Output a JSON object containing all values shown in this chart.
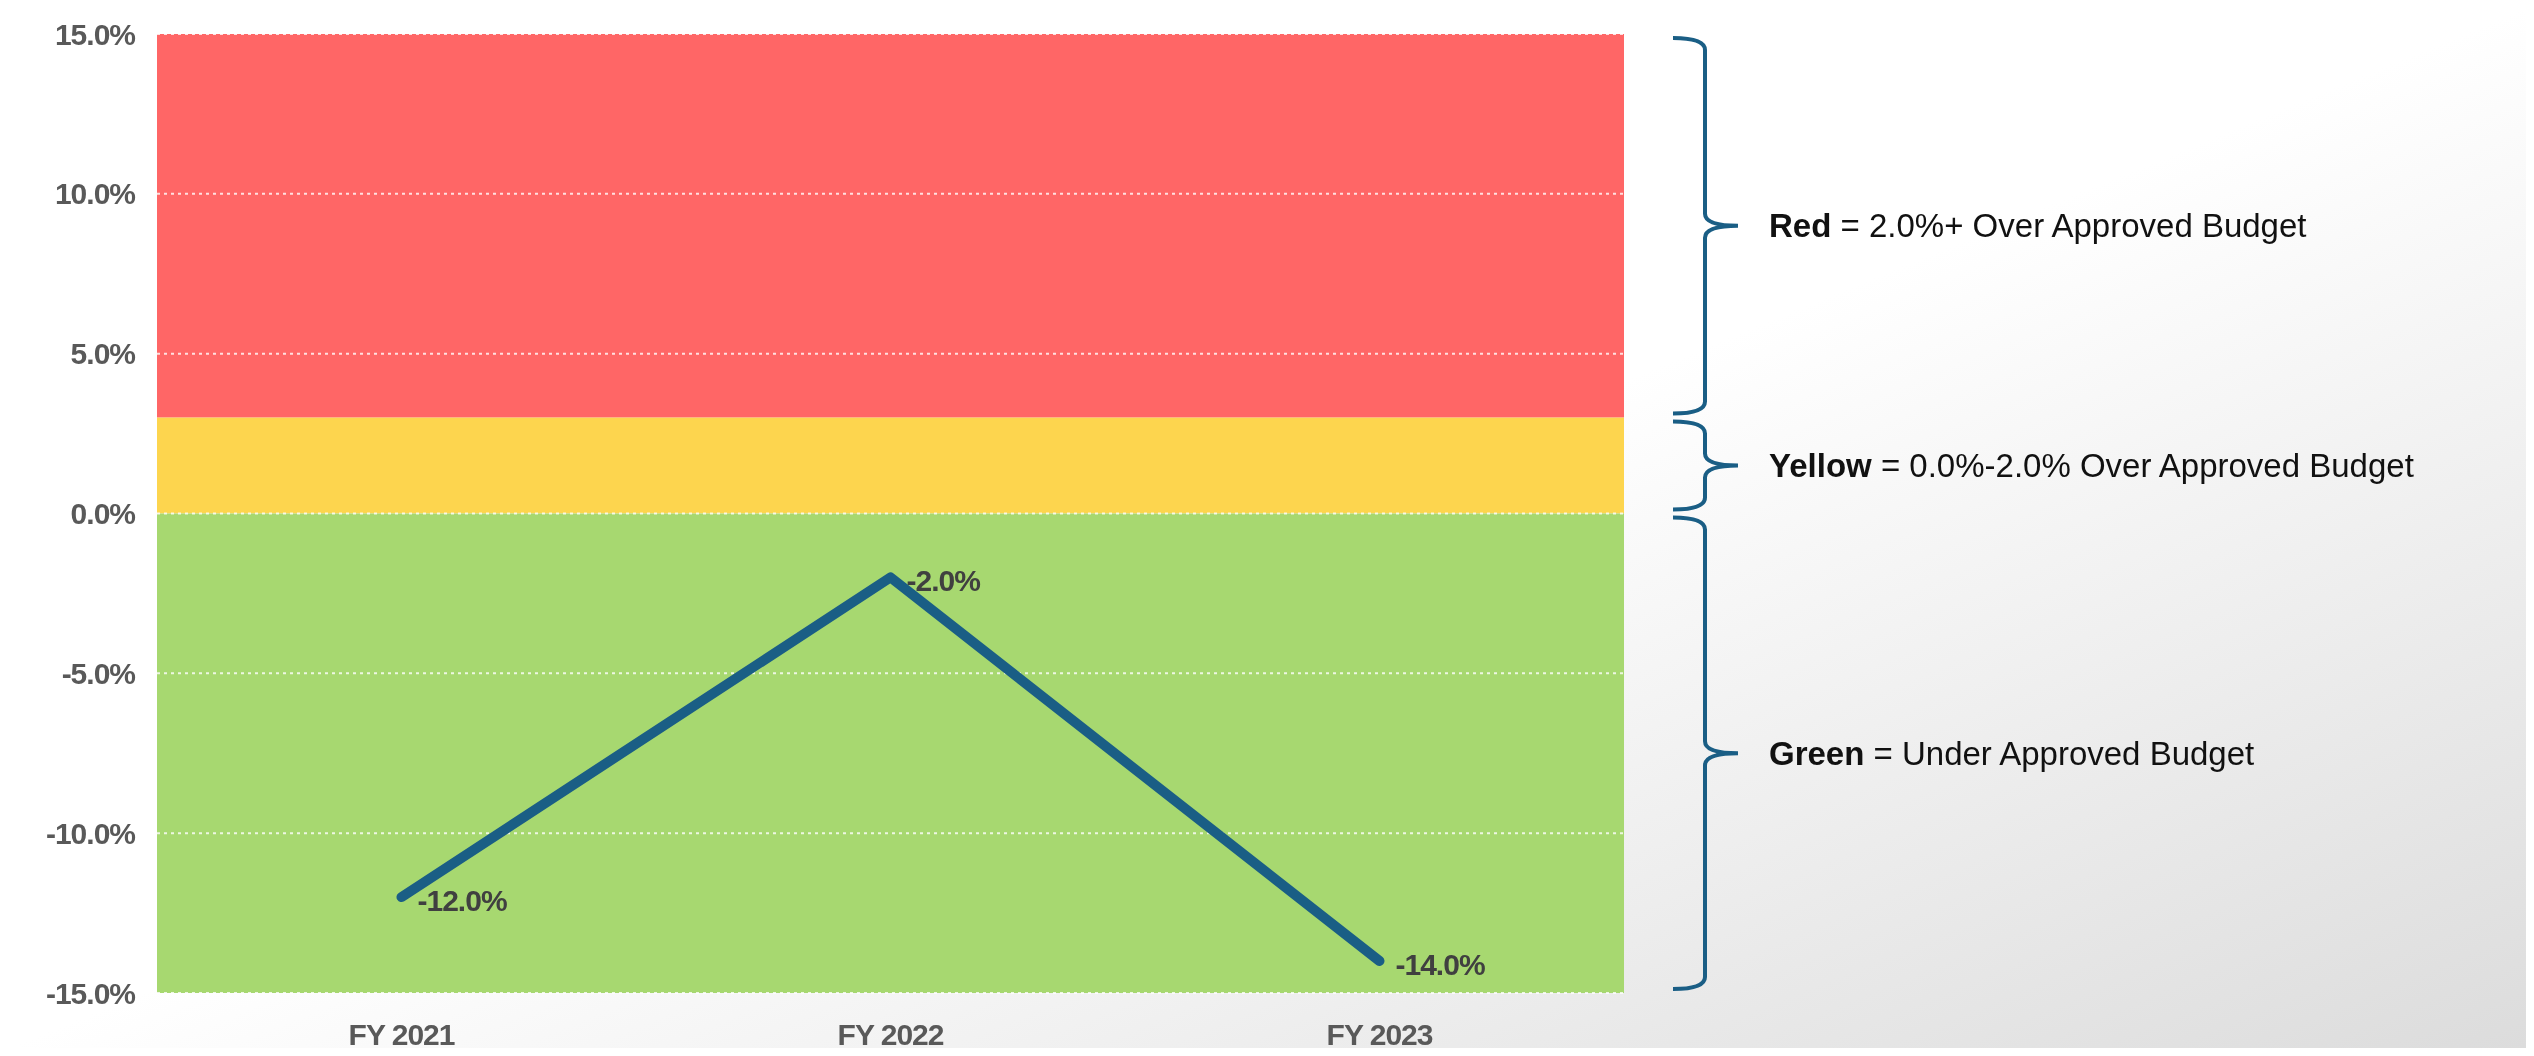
{
  "chart_data": {
    "type": "line",
    "categories": [
      "FY 2021",
      "FY 2022",
      "FY 2023"
    ],
    "series": [
      {
        "color": "#1a5e85",
        "values": [
          -12,
          -2,
          -14
        ],
        "value_labels": [
          "-12.0%",
          "-2.0%",
          "-14.0%"
        ]
      }
    ],
    "ylim": [
      -15,
      15
    ],
    "yticks": [
      {
        "value": -15,
        "label": "-15.0%"
      },
      {
        "value": -10,
        "label": "-10.0%"
      },
      {
        "value": -5,
        "label": "-5.0%"
      },
      {
        "value": 0,
        "label": "0.0%"
      },
      {
        "value": 5,
        "label": "5.0%"
      },
      {
        "value": 10,
        "label": "10.0%"
      },
      {
        "value": 15,
        "label": "15.0%"
      }
    ],
    "grid": "y",
    "marker": "none",
    "line_style": "solid",
    "bands": [
      {
        "axis": "y",
        "from": 3,
        "to": 15,
        "color": "#ff6666"
      },
      {
        "axis": "y",
        "from": 0,
        "to": 3,
        "color": "#fdd54e"
      },
      {
        "axis": "y",
        "from": -15,
        "to": 0,
        "color": "#a7d870"
      }
    ],
    "annotations": [
      "Red = 2.0%+ Over Approved Budget",
      "Yellow = 0.0%-2.0% Over Approved Budget",
      "Green = Under Approved Budget"
    ]
  }
}
